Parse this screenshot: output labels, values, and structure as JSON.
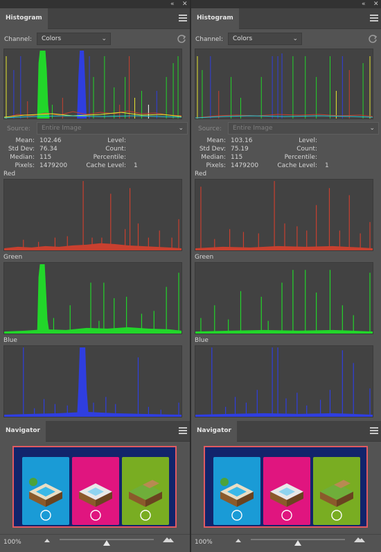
{
  "panels": [
    {
      "histogram": {
        "tab": "Histogram",
        "channel_label": "Channel:",
        "channel_value": "Colors",
        "source_label": "Source:",
        "source_value": "Entire Image",
        "stats": {
          "mean_label": "Mean:",
          "mean": "102.46",
          "std_label": "Std Dev:",
          "std": "76.34",
          "median_label": "Median:",
          "median": "115",
          "pixels_label": "Pixels:",
          "pixels": "1479200",
          "level_label": "Level:",
          "count_label": "Count:",
          "percentile_label": "Percentile:",
          "cache_label": "Cache Level:",
          "cache": "1"
        },
        "channels": {
          "red": "Red",
          "green": "Green",
          "blue": "Blue"
        }
      },
      "navigator": {
        "tab": "Navigator",
        "zoom": "100%",
        "zoom_level": 0.5
      }
    },
    {
      "histogram": {
        "tab": "Histogram",
        "channel_label": "Channel:",
        "channel_value": "Colors",
        "source_label": "Source:",
        "source_value": "Entire Image",
        "stats": {
          "mean_label": "Mean:",
          "mean": "103.16",
          "std_label": "Std Dev:",
          "std": "75.19",
          "median_label": "Median:",
          "median": "115",
          "pixels_label": "Pixels:",
          "pixels": "1479200",
          "level_label": "Level:",
          "count_label": "Count:",
          "percentile_label": "Percentile:",
          "cache_label": "Cache Level:",
          "cache": "1"
        },
        "channels": {
          "red": "Red",
          "green": "Green",
          "blue": "Blue"
        }
      },
      "navigator": {
        "tab": "Navigator",
        "zoom": "100%",
        "zoom_level": 0.5
      }
    }
  ],
  "colors": {
    "panel_bg": "#535353",
    "graph_bg": "#424242",
    "red": "#c9402f",
    "green": "#22d62a",
    "blue": "#2f3ee0",
    "accent_border": "#e05a61",
    "nav_bg": "#12246b",
    "card_cyan": "#1a9bd6",
    "card_magenta": "#e0157f",
    "card_green": "#79ad22"
  },
  "icons": [
    "collapse-icon",
    "close-icon",
    "panel-menu-icon",
    "chevron-down-icon",
    "refresh-icon",
    "zoom-out-icon",
    "zoom-in-icon",
    "slider-thumb-icon"
  ]
}
